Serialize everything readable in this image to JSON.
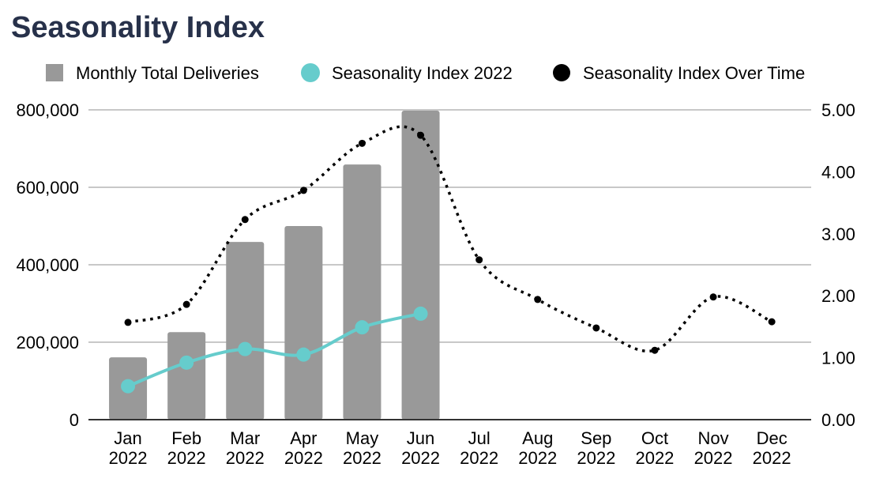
{
  "chart_data": {
    "type": "bar",
    "title": "Seasonality Index",
    "categories": [
      "Jan 2022",
      "Feb 2022",
      "Mar 2022",
      "Apr 2022",
      "May 2022",
      "Jun 2022",
      "Jul 2022",
      "Aug 2022",
      "Sep 2022",
      "Oct 2022",
      "Nov 2022",
      "Dec 2022"
    ],
    "legend_position": "top",
    "grid": true,
    "y_left": {
      "range": [
        0,
        800000
      ],
      "ticks": [
        "0",
        "200,000",
        "400,000",
        "600,000",
        "800,000"
      ]
    },
    "y_right": {
      "range": [
        0,
        5
      ],
      "ticks": [
        "0.00",
        "1.00",
        "2.00",
        "3.00",
        "4.00",
        "5.00"
      ]
    },
    "series": [
      {
        "name": "Monthly Total Deliveries",
        "type": "bar",
        "axis": "left",
        "color": "#999999",
        "values": [
          161000,
          226000,
          459000,
          500000,
          659000,
          798000,
          null,
          null,
          null,
          null,
          null,
          null
        ]
      },
      {
        "name": "Seasonality Index 2022",
        "type": "line",
        "axis": "right",
        "color": "#66cccc",
        "line": "solid",
        "values": [
          0.54,
          0.92,
          1.14,
          1.05,
          1.49,
          1.71,
          null,
          null,
          null,
          null,
          null,
          null
        ]
      },
      {
        "name": "Seasonality Index Over Time",
        "type": "line",
        "axis": "right",
        "color": "#000000",
        "line": "dotted",
        "values": [
          1.57,
          1.86,
          3.23,
          3.7,
          4.46,
          4.59,
          2.58,
          1.94,
          1.48,
          1.12,
          1.98,
          1.58
        ]
      }
    ]
  }
}
